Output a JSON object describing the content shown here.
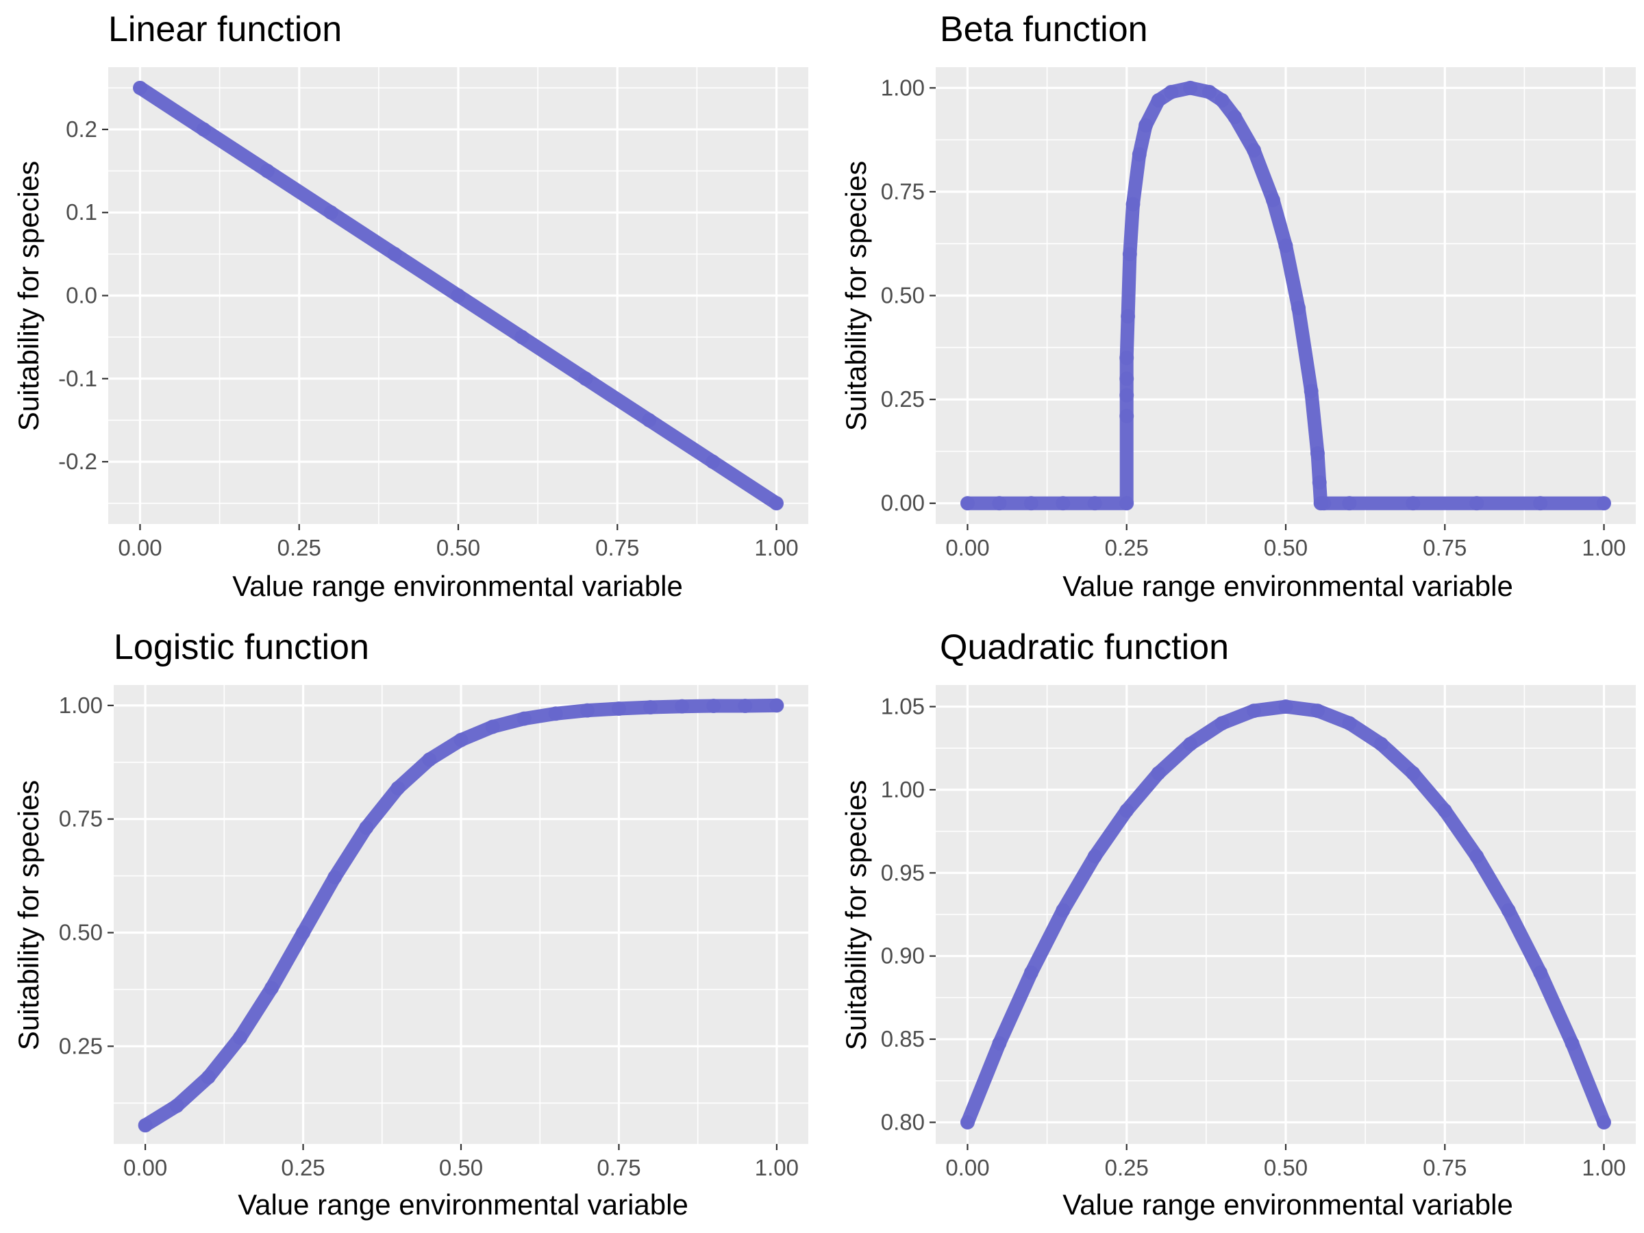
{
  "chart_data": [
    {
      "type": "scatter",
      "title": "Linear function",
      "xlabel": "Value range environmental variable",
      "ylabel": "Suitability for species",
      "xlim": [
        -0.05,
        1.05
      ],
      "ylim": [
        -0.275,
        0.275
      ],
      "xticks": [
        0.0,
        0.25,
        0.5,
        0.75,
        1.0
      ],
      "xtick_labels": [
        "0.00",
        "0.25",
        "0.50",
        "0.75",
        "1.00"
      ],
      "yticks": [
        -0.2,
        -0.1,
        0.0,
        0.1,
        0.2
      ],
      "ytick_labels": [
        "-0.2",
        "-0.1",
        "0.0",
        "0.1",
        "0.2"
      ],
      "grid": true,
      "color": "#6666cc",
      "series": [
        {
          "x": [
            0.0,
            0.1,
            0.2,
            0.3,
            0.4,
            0.5,
            0.6,
            0.7,
            0.8,
            0.9,
            1.0
          ],
          "y": [
            0.25,
            0.2,
            0.15,
            0.1,
            0.05,
            0.0,
            -0.05,
            -0.1,
            -0.15,
            -0.2,
            -0.25
          ]
        }
      ]
    },
    {
      "type": "scatter",
      "title": "Beta function",
      "xlabel": "Value range environmental variable",
      "ylabel": "Suitability for species",
      "xlim": [
        -0.05,
        1.05
      ],
      "ylim": [
        -0.05,
        1.05
      ],
      "xticks": [
        0.0,
        0.25,
        0.5,
        0.75,
        1.0
      ],
      "xtick_labels": [
        "0.00",
        "0.25",
        "0.50",
        "0.75",
        "1.00"
      ],
      "yticks": [
        0.0,
        0.25,
        0.5,
        0.75,
        1.0
      ],
      "ytick_labels": [
        "0.00",
        "0.25",
        "0.50",
        "0.75",
        "1.00"
      ],
      "grid": true,
      "color": "#6666cc",
      "series": [
        {
          "x": [
            0.0,
            0.05,
            0.1,
            0.15,
            0.2,
            0.25,
            0.25,
            0.25,
            0.25,
            0.25,
            0.252,
            0.255,
            0.26,
            0.27,
            0.28,
            0.3,
            0.32,
            0.35,
            0.38,
            0.4,
            0.42,
            0.45,
            0.48,
            0.5,
            0.52,
            0.54,
            0.55,
            0.553,
            0.555,
            0.56,
            0.6,
            0.7,
            0.8,
            0.9,
            1.0
          ],
          "y": [
            0.0,
            0.0,
            0.0,
            0.0,
            0.0,
            0.0,
            0.21,
            0.26,
            0.3,
            0.35,
            0.45,
            0.6,
            0.72,
            0.84,
            0.91,
            0.97,
            0.99,
            1.0,
            0.99,
            0.97,
            0.93,
            0.85,
            0.73,
            0.62,
            0.47,
            0.27,
            0.12,
            0.05,
            0.0,
            0.0,
            0.0,
            0.0,
            0.0,
            0.0,
            0.0
          ]
        }
      ]
    },
    {
      "type": "scatter",
      "title": "Logistic function",
      "xlabel": "Value range environmental variable",
      "ylabel": "Suitability for species",
      "xlim": [
        -0.05,
        1.05
      ],
      "ylim": [
        0.035,
        1.045
      ],
      "xticks": [
        0.0,
        0.25,
        0.5,
        0.75,
        1.0
      ],
      "xtick_labels": [
        "0.00",
        "0.25",
        "0.50",
        "0.75",
        "1.00"
      ],
      "yticks": [
        0.25,
        0.5,
        0.75,
        1.0
      ],
      "ytick_labels": [
        "0.25",
        "0.50",
        "0.75",
        "1.00"
      ],
      "grid": true,
      "color": "#6666cc",
      "series": [
        {
          "x": [
            0.0,
            0.05,
            0.1,
            0.15,
            0.2,
            0.25,
            0.3,
            0.35,
            0.4,
            0.45,
            0.5,
            0.55,
            0.6,
            0.65,
            0.7,
            0.75,
            0.8,
            0.85,
            0.9,
            0.95,
            1.0
          ],
          "y": [
            0.076,
            0.119,
            0.182,
            0.269,
            0.378,
            0.5,
            0.622,
            0.731,
            0.818,
            0.881,
            0.924,
            0.953,
            0.971,
            0.982,
            0.989,
            0.993,
            0.996,
            0.998,
            0.999,
            0.999,
            1.0
          ]
        }
      ]
    },
    {
      "type": "scatter",
      "title": "Quadratic function",
      "xlabel": "Value range environmental variable",
      "ylabel": "Suitability for species",
      "xlim": [
        -0.05,
        1.05
      ],
      "ylim": [
        0.787,
        1.063
      ],
      "xticks": [
        0.0,
        0.25,
        0.5,
        0.75,
        1.0
      ],
      "xtick_labels": [
        "0.00",
        "0.25",
        "0.50",
        "0.75",
        "1.00"
      ],
      "yticks": [
        0.8,
        0.85,
        0.9,
        0.95,
        1.0,
        1.05
      ],
      "ytick_labels": [
        "0.80",
        "0.85",
        "0.90",
        "0.95",
        "1.00",
        "1.05"
      ],
      "grid": true,
      "color": "#6666cc",
      "series": [
        {
          "x": [
            0.0,
            0.05,
            0.1,
            0.15,
            0.2,
            0.25,
            0.3,
            0.35,
            0.4,
            0.45,
            0.5,
            0.55,
            0.6,
            0.65,
            0.7,
            0.75,
            0.8,
            0.85,
            0.9,
            0.95,
            1.0
          ],
          "y": [
            0.8,
            0.8475,
            0.89,
            0.9275,
            0.96,
            0.9875,
            1.01,
            1.0275,
            1.04,
            1.0475,
            1.05,
            1.0475,
            1.04,
            1.0275,
            1.01,
            0.9875,
            0.96,
            0.9275,
            0.89,
            0.8475,
            0.8
          ]
        }
      ]
    }
  ]
}
